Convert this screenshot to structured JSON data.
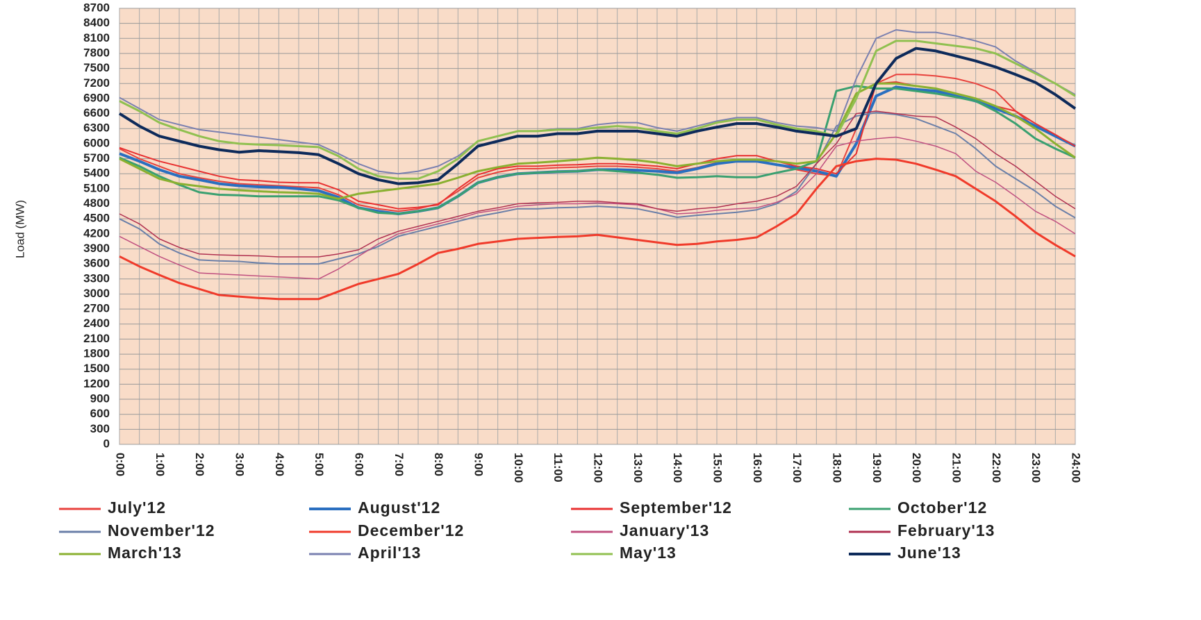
{
  "chart_data": {
    "type": "line",
    "y_label": "Load (MW)",
    "categories": [
      "0:00",
      null,
      "1:00",
      null,
      "2:00",
      null,
      "3:00",
      null,
      "4:00",
      null,
      "5:00",
      null,
      "6:00",
      null,
      "7:00",
      null,
      "8:00",
      null,
      "9:00",
      null,
      "10:00",
      null,
      "11:00",
      null,
      "12:00",
      null,
      "13:00",
      null,
      "14:00",
      null,
      "15:00",
      null,
      "16:00",
      null,
      "17:00",
      null,
      "18:00",
      null,
      "19:00",
      null,
      "20:00",
      null,
      "21:00",
      null,
      "22:00",
      null,
      "23:00",
      null,
      "24:00"
    ],
    "ylim": [
      0,
      8700
    ],
    "yticks": [
      0,
      300,
      600,
      900,
      1200,
      1500,
      1800,
      2100,
      2400,
      2700,
      3000,
      3300,
      3600,
      3900,
      4200,
      4500,
      4800,
      5100,
      5400,
      5700,
      6000,
      6300,
      6600,
      6900,
      7200,
      7500,
      7800,
      8100,
      8400,
      8700
    ],
    "grid": true,
    "background": "#f9dcc8",
    "series": [
      {
        "name": "July'12",
        "color": "#e8413c",
        "width": 2,
        "values": [
          5900,
          5700,
          5550,
          5400,
          5320,
          5250,
          5200,
          5180,
          5160,
          5140,
          5120,
          4980,
          4780,
          4700,
          4650,
          4700,
          4800,
          5050,
          5320,
          5430,
          5500,
          5500,
          5520,
          5530,
          5550,
          5550,
          5530,
          5500,
          5450,
          5520,
          5620,
          5680,
          5680,
          5580,
          5480,
          5400,
          5350,
          6300,
          7200,
          7380,
          7380,
          7350,
          7300,
          7200,
          7050,
          6650,
          6330,
          6150,
          5950
        ]
      },
      {
        "name": "August'12",
        "color": "#2a6fc0",
        "width": 4,
        "values": [
          5800,
          5650,
          5480,
          5350,
          5280,
          5200,
          5160,
          5140,
          5130,
          5100,
          5060,
          4930,
          4720,
          4650,
          4600,
          4650,
          4720,
          4950,
          5220,
          5330,
          5400,
          5420,
          5440,
          5450,
          5480,
          5480,
          5470,
          5450,
          5420,
          5500,
          5600,
          5650,
          5650,
          5580,
          5520,
          5450,
          5350,
          6000,
          6950,
          7130,
          7080,
          7050,
          6950,
          6850,
          6700,
          6550,
          6350,
          6150,
          5950
        ]
      },
      {
        "name": "September'12",
        "color": "#e83030",
        "width": 2,
        "values": [
          5920,
          5780,
          5650,
          5550,
          5450,
          5350,
          5280,
          5260,
          5230,
          5220,
          5220,
          5080,
          4850,
          4780,
          4700,
          4730,
          4780,
          5100,
          5380,
          5500,
          5550,
          5550,
          5570,
          5580,
          5600,
          5600,
          5580,
          5550,
          5500,
          5600,
          5700,
          5760,
          5760,
          5650,
          5550,
          5500,
          5400,
          5800,
          7200,
          7230,
          7150,
          7100,
          7000,
          6900,
          6750,
          6650,
          6400,
          6180,
          5950
        ]
      },
      {
        "name": "October'12",
        "color": "#3aa070",
        "width": 3,
        "values": [
          5720,
          5550,
          5350,
          5180,
          5030,
          4980,
          4970,
          4950,
          4950,
          4950,
          4950,
          4870,
          4720,
          4620,
          4600,
          4650,
          4720,
          4950,
          5220,
          5330,
          5400,
          5420,
          5440,
          5450,
          5480,
          5450,
          5420,
          5380,
          5320,
          5330,
          5350,
          5330,
          5330,
          5420,
          5500,
          5650,
          7050,
          7150,
          7100,
          7100,
          7050,
          7000,
          6930,
          6850,
          6650,
          6400,
          6100,
          5900,
          5720
        ]
      },
      {
        "name": "November'12",
        "color": "#6a7fa8",
        "width": 2,
        "values": [
          4500,
          4300,
          4000,
          3820,
          3680,
          3660,
          3650,
          3620,
          3600,
          3600,
          3600,
          3700,
          3800,
          3950,
          4150,
          4250,
          4350,
          4450,
          4550,
          4620,
          4700,
          4700,
          4720,
          4730,
          4750,
          4730,
          4700,
          4620,
          4530,
          4570,
          4600,
          4630,
          4680,
          4800,
          5050,
          5600,
          6350,
          6550,
          6620,
          6580,
          6500,
          6350,
          6200,
          5900,
          5550,
          5300,
          5050,
          4750,
          4520
        ]
      },
      {
        "name": "December'12",
        "color": "#f03a2a",
        "width": 3,
        "values": [
          3750,
          3550,
          3380,
          3220,
          3100,
          2980,
          2950,
          2920,
          2900,
          2900,
          2900,
          3050,
          3200,
          3300,
          3400,
          3600,
          3820,
          3900,
          4000,
          4050,
          4100,
          4120,
          4140,
          4150,
          4180,
          4130,
          4080,
          4030,
          3980,
          4000,
          4050,
          4080,
          4130,
          4350,
          4600,
          5100,
          5550,
          5650,
          5700,
          5680,
          5600,
          5480,
          5350,
          5100,
          4850,
          4550,
          4230,
          3980,
          3750
        ]
      },
      {
        "name": "January'13",
        "color": "#c05080",
        "width": 1.5,
        "values": [
          4150,
          3950,
          3750,
          3580,
          3420,
          3400,
          3380,
          3360,
          3340,
          3320,
          3300,
          3500,
          3750,
          4000,
          4200,
          4300,
          4400,
          4500,
          4620,
          4680,
          4750,
          4780,
          4800,
          4800,
          4820,
          4800,
          4780,
          4700,
          4600,
          4620,
          4670,
          4700,
          4720,
          4830,
          5000,
          5400,
          5950,
          6050,
          6100,
          6130,
          6050,
          5950,
          5800,
          5450,
          5230,
          4950,
          4650,
          4450,
          4200
        ]
      },
      {
        "name": "February'13",
        "color": "#b03050",
        "width": 1.5,
        "values": [
          4600,
          4400,
          4100,
          3930,
          3800,
          3780,
          3770,
          3760,
          3740,
          3740,
          3740,
          3800,
          3880,
          4100,
          4250,
          4350,
          4450,
          4550,
          4650,
          4720,
          4800,
          4820,
          4830,
          4850,
          4850,
          4820,
          4800,
          4700,
          4650,
          4700,
          4730,
          4800,
          4850,
          4950,
          5150,
          5600,
          6000,
          6600,
          6650,
          6600,
          6550,
          6530,
          6330,
          6100,
          5800,
          5550,
          5250,
          4950,
          4700
        ]
      },
      {
        "name": "March'13",
        "color": "#8ab030",
        "width": 3,
        "values": [
          5700,
          5500,
          5300,
          5200,
          5150,
          5100,
          5070,
          5050,
          5030,
          5020,
          5000,
          4900,
          5000,
          5050,
          5100,
          5150,
          5200,
          5320,
          5450,
          5530,
          5600,
          5620,
          5650,
          5680,
          5720,
          5700,
          5670,
          5620,
          5550,
          5600,
          5650,
          5680,
          5680,
          5650,
          5600,
          5650,
          6200,
          7000,
          7200,
          7200,
          7150,
          7100,
          7000,
          6900,
          6750,
          6550,
          6300,
          6000,
          5720
        ]
      },
      {
        "name": "April'13",
        "color": "#7a80b0",
        "width": 2,
        "values": [
          6920,
          6700,
          6480,
          6380,
          6280,
          6230,
          6180,
          6130,
          6080,
          6030,
          5980,
          5800,
          5600,
          5450,
          5400,
          5450,
          5550,
          5750,
          6050,
          6150,
          6250,
          6250,
          6300,
          6300,
          6380,
          6420,
          6420,
          6320,
          6250,
          6350,
          6450,
          6520,
          6520,
          6420,
          6350,
          6320,
          6250,
          7300,
          8100,
          8270,
          8220,
          8220,
          8150,
          8050,
          7930,
          7650,
          7430,
          7200,
          6980
        ]
      },
      {
        "name": "May'13",
        "color": "#90c050",
        "width": 3,
        "values": [
          6850,
          6650,
          6420,
          6280,
          6150,
          6050,
          6000,
          5980,
          5970,
          5950,
          5930,
          5750,
          5500,
          5350,
          5300,
          5300,
          5450,
          5700,
          6050,
          6150,
          6250,
          6250,
          6280,
          6280,
          6320,
          6350,
          6320,
          6250,
          6200,
          6300,
          6420,
          6480,
          6480,
          6380,
          6300,
          6250,
          6150,
          6900,
          7850,
          8050,
          8050,
          8000,
          7950,
          7900,
          7800,
          7600,
          7400,
          7200,
          6950
        ]
      },
      {
        "name": "June'13",
        "color": "#0d2a5a",
        "width": 4,
        "values": [
          6600,
          6350,
          6150,
          6050,
          5950,
          5880,
          5830,
          5860,
          5840,
          5820,
          5780,
          5600,
          5400,
          5280,
          5200,
          5220,
          5280,
          5600,
          5950,
          6050,
          6150,
          6150,
          6200,
          6200,
          6250,
          6250,
          6250,
          6200,
          6150,
          6250,
          6330,
          6400,
          6400,
          6330,
          6250,
          6200,
          6150,
          6300,
          7200,
          7700,
          7900,
          7850,
          7750,
          7650,
          7530,
          7380,
          7220,
          6980,
          6700
        ]
      }
    ]
  }
}
